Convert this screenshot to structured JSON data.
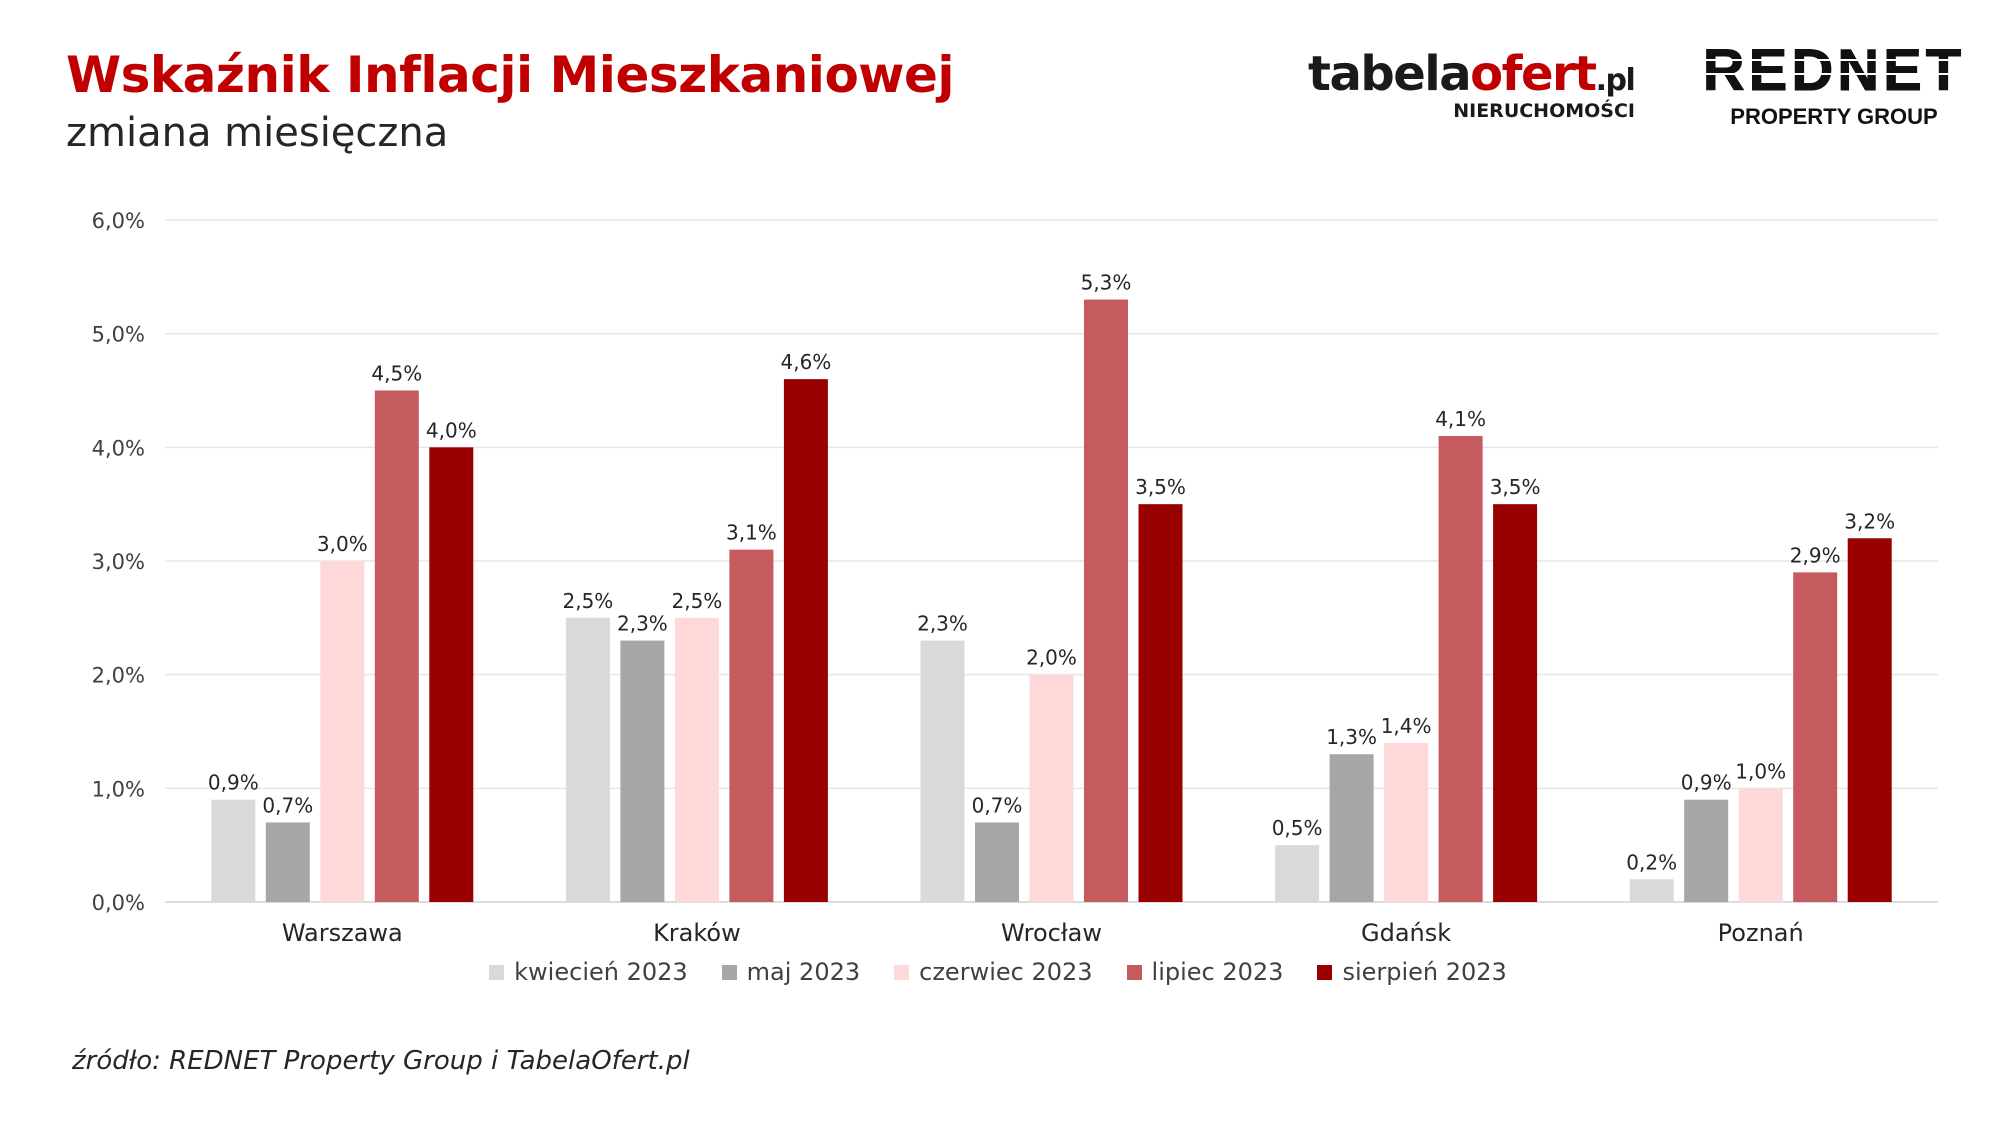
{
  "header": {
    "title": "Wskaźnik Inflacji Mieszkaniowej",
    "subtitle": "zmiana miesięczna"
  },
  "logos": {
    "tabelaofert": {
      "part1": "tabela",
      "part2": "ofert",
      "part3": ".pl",
      "sub": "NIERUCHOMOŚCI"
    },
    "rednet": {
      "main": "REDNET",
      "sub": "PROPERTY GROUP"
    }
  },
  "footer": {
    "source": "źródło: REDNET Property Group i TabelaOfert.pl"
  },
  "chart_data": {
    "type": "bar",
    "title": "Wskaźnik Inflacji Mieszkaniowej",
    "subtitle": "zmiana miesięczna",
    "xlabel": "",
    "ylabel": "",
    "ylim": [
      0,
      6
    ],
    "y_ticks": [
      "0,0%",
      "1,0%",
      "2,0%",
      "3,0%",
      "4,0%",
      "5,0%",
      "6,0%"
    ],
    "grid": true,
    "legend_position": "bottom",
    "categories": [
      "Warszawa",
      "Kraków",
      "Wrocław",
      "Gdańsk",
      "Poznań"
    ],
    "series": [
      {
        "name": "kwiecień 2023",
        "color": "#d9d9d9",
        "values": [
          0.9,
          2.5,
          2.3,
          0.5,
          0.2
        ],
        "labels": [
          "0,9%",
          "2,5%",
          "2,3%",
          "0,5%",
          "0,2%"
        ]
      },
      {
        "name": "maj 2023",
        "color": "#a6a6a6",
        "values": [
          0.7,
          2.3,
          0.7,
          1.3,
          0.9
        ],
        "labels": [
          "0,7%",
          "2,3%",
          "0,7%",
          "1,3%",
          "0,9%"
        ]
      },
      {
        "name": "czerwiec 2023",
        "color": "#ffd9da",
        "values": [
          3.0,
          2.5,
          2.0,
          1.4,
          1.0
        ],
        "labels": [
          "3,0%",
          "2,5%",
          "2,0%",
          "1,4%",
          "1,0%"
        ]
      },
      {
        "name": "lipiec 2023",
        "color": "#c55a5f",
        "values": [
          4.5,
          3.1,
          5.3,
          4.1,
          2.9
        ],
        "labels": [
          "4,5%",
          "3,1%",
          "5,3%",
          "4,1%",
          "2,9%"
        ]
      },
      {
        "name": "sierpień 2023",
        "color": "#990000",
        "values": [
          4.0,
          4.6,
          3.5,
          3.5,
          3.2
        ],
        "labels": [
          "4,0%",
          "4,6%",
          "3,5%",
          "3,5%",
          "3,2%"
        ]
      }
    ]
  }
}
